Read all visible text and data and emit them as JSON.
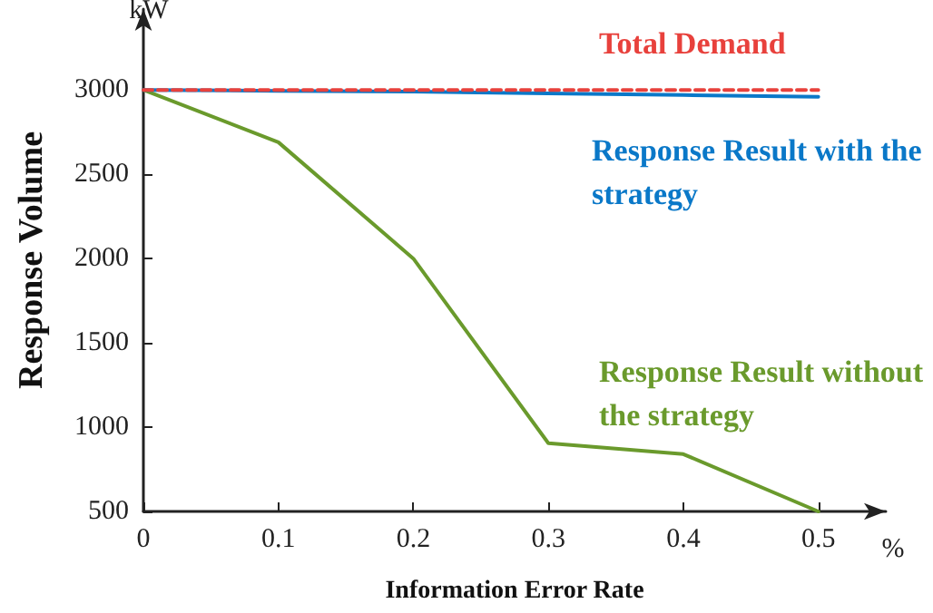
{
  "chart_data": {
    "type": "line",
    "xlabel": "Information Error Rate",
    "ylabel": "Response Volume",
    "annotations": [
      "kW",
      "%"
    ],
    "x": [
      0,
      0.1,
      0.2,
      0.3,
      0.4,
      0.5
    ],
    "series": [
      {
        "name": "Total Demand",
        "color": "#e8413c",
        "line_style": "dashed",
        "values": [
          3000,
          3000,
          3000,
          3000,
          3000,
          3000
        ]
      },
      {
        "name": "Response Result with the strategy",
        "color": "#0a78c8",
        "values": [
          3000,
          2995,
          2990,
          2980,
          2970,
          2960
        ]
      },
      {
        "name": "Response Result without the strategy",
        "color": "#6a9a2c",
        "values": [
          3000,
          2690,
          2000,
          905,
          840,
          500
        ]
      }
    ],
    "xlim": [
      0,
      0.55
    ],
    "xticks": [
      0,
      0.1,
      0.2,
      0.3,
      0.4,
      0.5
    ],
    "ylim": [
      500,
      3480
    ],
    "yticks": [
      500,
      1000,
      1500,
      2000,
      2500,
      3000
    ],
    "grid": false,
    "legend": false,
    "marker": "none",
    "line_style": "solid"
  }
}
